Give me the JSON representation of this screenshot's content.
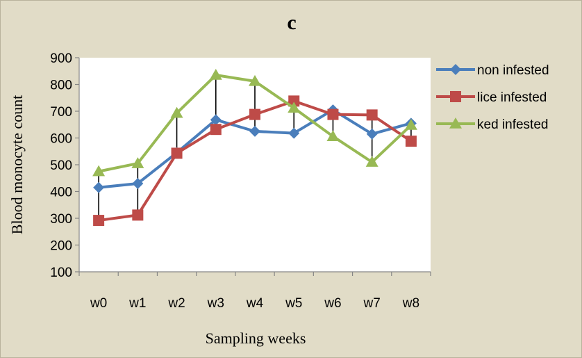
{
  "chart_data": {
    "type": "line",
    "title": "c",
    "xlabel": "Sampling weeks",
    "ylabel": "Blood monocyte count",
    "categories": [
      "w0",
      "w1",
      "w2",
      "w3",
      "w4",
      "w5",
      "w6",
      "w7",
      "w8"
    ],
    "ylim": [
      100,
      900
    ],
    "yticks": [
      100,
      200,
      300,
      400,
      500,
      600,
      700,
      800,
      900
    ],
    "grid": false,
    "legend_position": "right",
    "drop_lines": true,
    "series": [
      {
        "name": "non infested",
        "color": "#4a7ebb",
        "marker": "diamond",
        "values": [
          415,
          430,
          545,
          668,
          625,
          618,
          705,
          615,
          655
        ]
      },
      {
        "name": "lice infested",
        "color": "#be4b48",
        "marker": "square",
        "values": [
          292,
          312,
          543,
          632,
          688,
          738,
          688,
          686,
          588
        ]
      },
      {
        "name": "ked infested",
        "color": "#98b954",
        "marker": "triangle",
        "values": [
          475,
          505,
          693,
          835,
          812,
          712,
          606,
          510,
          648
        ]
      }
    ]
  }
}
